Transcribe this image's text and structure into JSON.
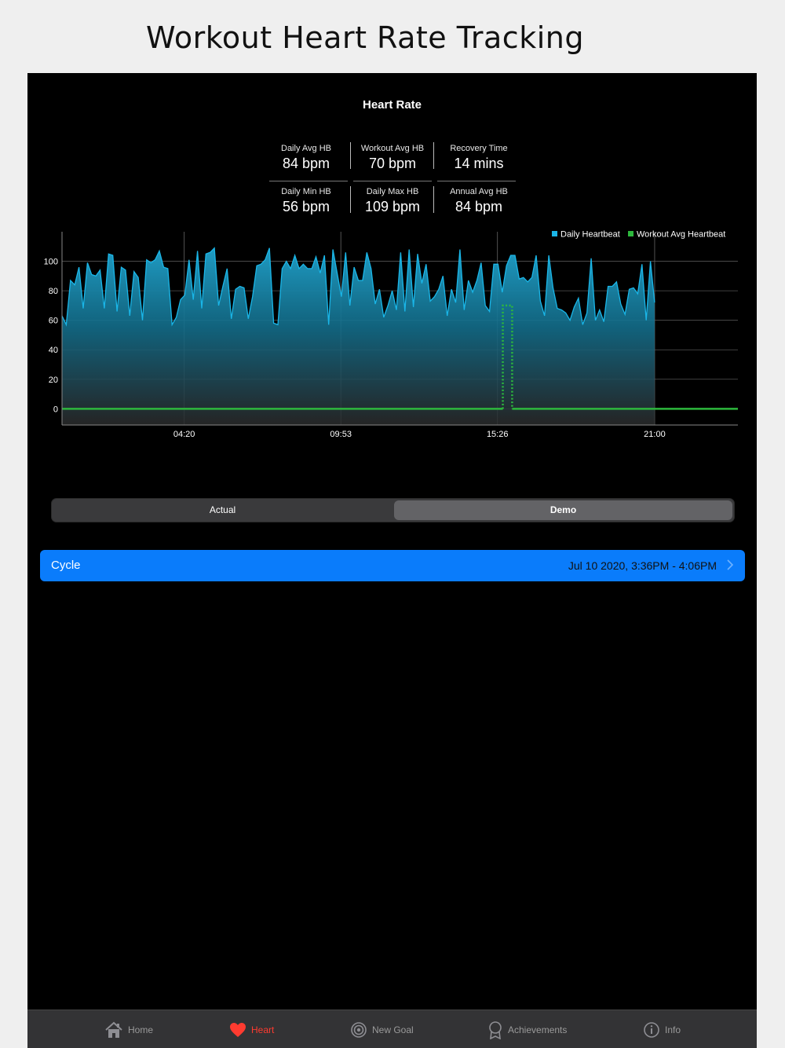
{
  "caption": "Workout Heart Rate Tracking",
  "screen_title": "Heart Rate",
  "stats": [
    {
      "label": "Daily Avg HB",
      "value": "84 bpm"
    },
    {
      "label": "Workout Avg HB",
      "value": "70 bpm"
    },
    {
      "label": "Recovery Time",
      "value": "14 mins"
    },
    {
      "label": "Daily Min HB",
      "value": "56 bpm"
    },
    {
      "label": "Daily Max HB",
      "value": "109 bpm"
    },
    {
      "label": "Annual Avg HB",
      "value": "84 bpm"
    }
  ],
  "segmented": {
    "left": "Actual",
    "right": "Demo",
    "selected": "Demo"
  },
  "workout": {
    "name": "Cycle",
    "time": "Jul 10 2020, 3:36PM - 4:06PM"
  },
  "tabs": [
    {
      "label": "Home",
      "icon": "house-icon"
    },
    {
      "label": "Heart",
      "icon": "heart-icon",
      "active": true
    },
    {
      "label": "New Goal",
      "icon": "target-icon"
    },
    {
      "label": "Achievements",
      "icon": "award-icon"
    },
    {
      "label": "Info",
      "icon": "info-icon"
    }
  ],
  "colors": {
    "daily": "#1ab6e8",
    "workout": "#2db83d",
    "accent": "#0a7cfb",
    "active_tab": "#ff3b30"
  },
  "chart_data": {
    "type": "area",
    "title": "",
    "xlabel": "",
    "ylabel": "",
    "ylim": [
      -11,
      120
    ],
    "yticks": [
      0,
      20,
      40,
      60,
      80,
      100
    ],
    "x_tick_labels": [
      "04:20",
      "09:53",
      "15:26",
      "21:00"
    ],
    "x_tick_positions": [
      4.33,
      9.88,
      15.43,
      21.0
    ],
    "xlim": [
      0,
      23.95
    ],
    "grid": true,
    "legend_position": "top-right",
    "series": [
      {
        "name": "Daily Heartbeat",
        "color": "#1ab6e8",
        "start": 0,
        "step": 0.15,
        "values": [
          63,
          57,
          87,
          84,
          96,
          68,
          99,
          91,
          90,
          94,
          68,
          105,
          104,
          66,
          96,
          94,
          63,
          93,
          89,
          60,
          101,
          99,
          101,
          107,
          96,
          95,
          57,
          62,
          74,
          77,
          101,
          74,
          107,
          68,
          105,
          106,
          109,
          70,
          83,
          95,
          61,
          81,
          83,
          82,
          61,
          76,
          97,
          98,
          101,
          109,
          58,
          57,
          95,
          100,
          95,
          104,
          95,
          98,
          95,
          95,
          103,
          92,
          104,
          57,
          108,
          92,
          76,
          106,
          70,
          96,
          87,
          87,
          106,
          95,
          71,
          81,
          62,
          70,
          80,
          67,
          106,
          66,
          108,
          69,
          105,
          85,
          98,
          73,
          76,
          81,
          90,
          63,
          81,
          72,
          108,
          67,
          87,
          79,
          87,
          99,
          70,
          66,
          98,
          98,
          79,
          97,
          104,
          104,
          88,
          89,
          86,
          89,
          104,
          73,
          63,
          104,
          82,
          68,
          67,
          65,
          60,
          69,
          75,
          57,
          65,
          102,
          60,
          67,
          59,
          83,
          83,
          86,
          71,
          64,
          81,
          82,
          78,
          98,
          60,
          100,
          72
        ]
      },
      {
        "name": "Workout Avg Heartbeat",
        "color": "#2db83d",
        "segments": [
          {
            "from": 0,
            "to": 15.62,
            "value": 0
          },
          {
            "from": 15.62,
            "to": 15.95,
            "value": 70
          },
          {
            "from": 15.95,
            "to": 23.95,
            "value": 0
          }
        ]
      }
    ]
  }
}
